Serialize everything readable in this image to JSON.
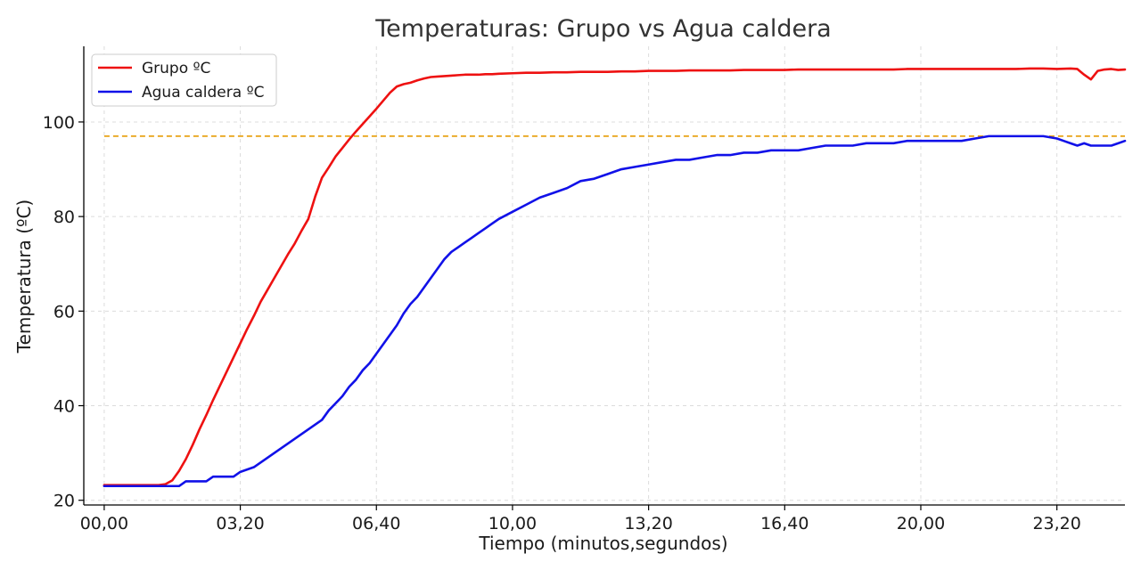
{
  "chart_data": {
    "type": "line",
    "title": "Temperaturas: Grupo vs Agua caldera",
    "xlabel": "Tiempo (minutos,segundos)",
    "ylabel": "Temperatura (ºC)",
    "x_unit": "seconds",
    "xlim": [
      -30,
      1500
    ],
    "ylim": [
      19,
      116
    ],
    "x_ticks": [
      {
        "value": 0,
        "label": "00,00"
      },
      {
        "value": 200,
        "label": "03,20"
      },
      {
        "value": 400,
        "label": "06,40"
      },
      {
        "value": 600,
        "label": "10,00"
      },
      {
        "value": 800,
        "label": "13,20"
      },
      {
        "value": 1000,
        "label": "16,40"
      },
      {
        "value": 1200,
        "label": "20,00"
      },
      {
        "value": 1400,
        "label": "23,20"
      }
    ],
    "y_ticks": [
      {
        "value": 20,
        "label": "20"
      },
      {
        "value": 40,
        "label": "40"
      },
      {
        "value": 60,
        "label": "60"
      },
      {
        "value": 80,
        "label": "80"
      },
      {
        "value": 100,
        "label": "100"
      }
    ],
    "grid": true,
    "legend_position": "top-left",
    "reference_line": {
      "y": 97,
      "x_range": [
        0,
        1500
      ],
      "color": "#e8a317",
      "style": "dashed"
    },
    "series": [
      {
        "name": "Grupo ºC",
        "color": "#ee1111",
        "x": [
          0,
          20,
          40,
          60,
          80,
          90,
          100,
          110,
          120,
          130,
          140,
          150,
          160,
          170,
          180,
          190,
          200,
          210,
          220,
          230,
          240,
          250,
          260,
          270,
          280,
          290,
          300,
          310,
          320,
          330,
          340,
          350,
          360,
          370,
          380,
          390,
          400,
          410,
          420,
          430,
          440,
          450,
          460,
          470,
          480,
          490,
          500,
          510,
          520,
          530,
          540,
          550,
          560,
          570,
          580,
          600,
          620,
          640,
          660,
          680,
          700,
          720,
          740,
          760,
          780,
          800,
          820,
          840,
          860,
          880,
          900,
          920,
          940,
          960,
          980,
          1000,
          1020,
          1040,
          1060,
          1080,
          1100,
          1120,
          1140,
          1160,
          1180,
          1200,
          1220,
          1240,
          1260,
          1280,
          1300,
          1320,
          1340,
          1360,
          1380,
          1400,
          1420,
          1430,
          1440,
          1450,
          1460,
          1470,
          1480,
          1490,
          1500
        ],
        "values": [
          23.2,
          23.2,
          23.2,
          23.2,
          23.2,
          23.4,
          24.2,
          26.2,
          28.7,
          31.7,
          35.0,
          38.0,
          41.2,
          44.2,
          47.2,
          50.2,
          53.2,
          56.2,
          59.0,
          62.0,
          64.5,
          67.0,
          69.5,
          72.0,
          74.3,
          77.0,
          79.5,
          84.2,
          88.2,
          90.4,
          92.7,
          94.5,
          96.3,
          98.0,
          99.6,
          101.2,
          102.8,
          104.5,
          106.2,
          107.5,
          108.0,
          108.3,
          108.8,
          109.2,
          109.5,
          109.6,
          109.7,
          109.8,
          109.9,
          110.0,
          110.0,
          110.0,
          110.1,
          110.1,
          110.2,
          110.3,
          110.4,
          110.4,
          110.5,
          110.5,
          110.6,
          110.6,
          110.6,
          110.7,
          110.7,
          110.8,
          110.8,
          110.8,
          110.9,
          110.9,
          110.9,
          110.9,
          111.0,
          111.0,
          111.0,
          111.0,
          111.1,
          111.1,
          111.1,
          111.1,
          111.1,
          111.1,
          111.1,
          111.1,
          111.2,
          111.2,
          111.2,
          111.2,
          111.2,
          111.2,
          111.2,
          111.2,
          111.2,
          111.3,
          111.3,
          111.2,
          111.3,
          111.2,
          110.0,
          109.0,
          110.8,
          111.1,
          111.2,
          111.0,
          111.1
        ]
      },
      {
        "name": "Agua caldera ºC",
        "color": "#1111e8",
        "x": [
          0,
          20,
          40,
          60,
          80,
          90,
          100,
          110,
          120,
          130,
          140,
          150,
          160,
          170,
          180,
          190,
          200,
          220,
          240,
          260,
          280,
          300,
          320,
          330,
          340,
          350,
          360,
          370,
          380,
          390,
          400,
          410,
          420,
          430,
          440,
          450,
          460,
          470,
          480,
          490,
          500,
          510,
          520,
          530,
          540,
          550,
          560,
          570,
          580,
          600,
          620,
          640,
          660,
          680,
          700,
          720,
          740,
          760,
          780,
          800,
          820,
          840,
          860,
          880,
          900,
          920,
          940,
          960,
          980,
          1000,
          1020,
          1040,
          1060,
          1080,
          1100,
          1120,
          1140,
          1160,
          1180,
          1200,
          1220,
          1240,
          1260,
          1280,
          1300,
          1320,
          1340,
          1360,
          1380,
          1400,
          1410,
          1420,
          1430,
          1440,
          1450,
          1460,
          1470,
          1480,
          1490,
          1500
        ],
        "values": [
          23.0,
          23.0,
          23.0,
          23.0,
          23.0,
          23.0,
          23.0,
          23.0,
          24.0,
          24.0,
          24.0,
          24.0,
          25.0,
          25.0,
          25.0,
          25.0,
          26.0,
          27.0,
          29.0,
          31.0,
          33.0,
          35.0,
          37.0,
          39.0,
          40.5,
          42.0,
          44.0,
          45.5,
          47.5,
          49.0,
          51.0,
          53.0,
          55.0,
          57.0,
          59.5,
          61.5,
          63.0,
          65.0,
          67.0,
          69.0,
          71.0,
          72.5,
          73.5,
          74.5,
          75.5,
          76.5,
          77.5,
          78.5,
          79.5,
          81.0,
          82.5,
          84.0,
          85.0,
          86.0,
          87.5,
          88.0,
          89.0,
          90.0,
          90.5,
          91.0,
          91.5,
          92.0,
          92.0,
          92.5,
          93.0,
          93.0,
          93.5,
          93.5,
          94.0,
          94.0,
          94.0,
          94.5,
          95.0,
          95.0,
          95.0,
          95.5,
          95.5,
          95.5,
          96.0,
          96.0,
          96.0,
          96.0,
          96.0,
          96.5,
          97.0,
          97.0,
          97.0,
          97.0,
          97.0,
          96.5,
          96.0,
          95.5,
          95.0,
          95.5,
          95.0,
          95.0,
          95.0,
          95.0,
          95.5,
          96.0
        ]
      }
    ]
  }
}
